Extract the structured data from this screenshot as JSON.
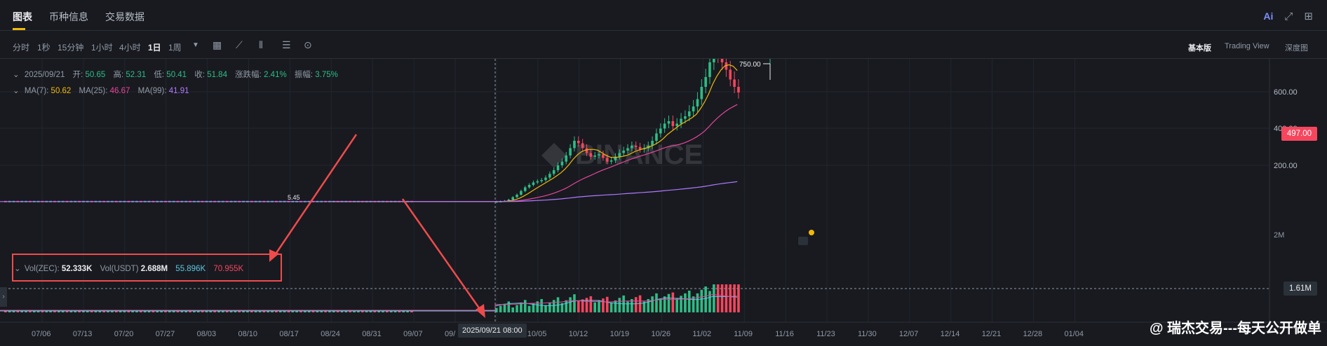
{
  "tabs": [
    {
      "label": "图表"
    },
    {
      "label": "币种信息"
    },
    {
      "label": "交易数据"
    }
  ],
  "top_icons": {
    "ai": "Ai",
    "expand": "expand-icon",
    "grid": "grid-icon"
  },
  "intervals": [
    {
      "label": "分时"
    },
    {
      "label": "1秒"
    },
    {
      "label": "15分钟"
    },
    {
      "label": "1小时"
    },
    {
      "label": "4小时"
    },
    {
      "label": "1日"
    },
    {
      "label": "1周"
    }
  ],
  "active_interval": "1日",
  "view_options": [
    {
      "label": "基本版"
    },
    {
      "label": "Trading View"
    },
    {
      "label": "深度图"
    }
  ],
  "ohlc": {
    "date": "2025/09/21",
    "open_label": "开:",
    "open": "50.65",
    "high_label": "高:",
    "high": "52.31",
    "low_label": "低:",
    "low": "50.41",
    "close_label": "收:",
    "close": "51.84",
    "change_label": "涨跌幅:",
    "change": "2.41%",
    "amp_label": "振幅:",
    "amp": "3.75%"
  },
  "ma": {
    "ma7_label": "MA(7):",
    "ma7": "50.62",
    "ma25_label": "MA(25):",
    "ma25": "46.67",
    "ma99_label": "MA(99):",
    "ma99": "41.91"
  },
  "volume": {
    "vol_label": "Vol(ZEC):",
    "vol": "52.333K",
    "volu_label": "Vol(USDT)",
    "volu": "2.688M",
    "v1": "55.896K",
    "v2": "70.955K"
  },
  "price_axis": [
    "600.00",
    "400.00",
    "200.00"
  ],
  "current_price": "497.00",
  "volume_price": "1.61M",
  "high_marker": "750.00",
  "low_fragment": "5.45",
  "vol_axis_label": "2M",
  "x_axis": [
    "07/06",
    "07/13",
    "07/20",
    "07/27",
    "08/03",
    "08/10",
    "08/17",
    "08/24",
    "08/31",
    "09/07",
    "09/",
    "09/28",
    "10/05",
    "10/12",
    "10/19",
    "10/26",
    "11/02",
    "11/09",
    "11/16",
    "11/23",
    "11/30",
    "12/07",
    "12/14",
    "12/21",
    "12/28",
    "01/04"
  ],
  "crosshair_date": "2025/09/21 08:00",
  "watermark": "@ 瑞杰交易---每天公开做单",
  "logo_text": "BINANCE",
  "colors": {
    "up": "#2ebd85",
    "down": "#f6465d",
    "ma7": "#f0b90b",
    "ma25": "#e6469a",
    "ma99": "#b278ff",
    "accent": "#f0b90b",
    "annotation": "#ef4b4b"
  },
  "chart_data": {
    "type": "candlestick",
    "ylim": [
      0,
      800
    ],
    "closes_recent": [
      52,
      53,
      55,
      60,
      70,
      80,
      95,
      110,
      120,
      130,
      135,
      140,
      150,
      165,
      180,
      200,
      215,
      240,
      270,
      300,
      290,
      270,
      250,
      235,
      240,
      245,
      230,
      215,
      220,
      235,
      250,
      260,
      270,
      280,
      275,
      265,
      270,
      280,
      300,
      330,
      350,
      370,
      380,
      360,
      370,
      390,
      400,
      420,
      440,
      470,
      520,
      560,
      620,
      680,
      650,
      620,
      590,
      550,
      520,
      497
    ]
  }
}
